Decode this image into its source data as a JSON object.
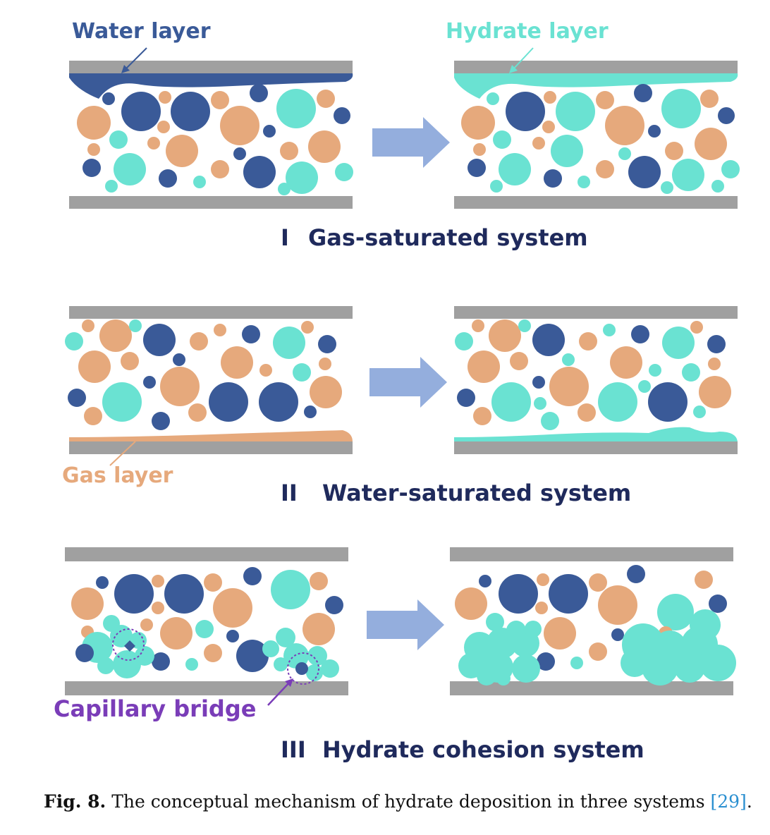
{
  "colors": {
    "water": "#3a5a98",
    "hydrate": "#6ae2d2",
    "gas": "#e6a97c",
    "wall": "#a0a0a0",
    "arrow": "#94aedd",
    "title": "#1f2a5c",
    "capillary": "#7a3db8"
  },
  "labels": {
    "water_layer": "Water layer",
    "hydrate_layer": "Hydrate layer",
    "gas_layer": "Gas layer",
    "capillary_bridge": "Capillary bridge"
  },
  "systems": [
    {
      "numeral": "I",
      "title": "Gas-saturated system"
    },
    {
      "numeral": "II",
      "title": "Water-saturated system"
    },
    {
      "numeral": "III",
      "title": "Hydrate cohesion system"
    }
  ],
  "caption": {
    "fig": "Fig. 8.",
    "text": "The conceptual mechanism of hydrate deposition in three systems",
    "ref": "[29]",
    "end": "."
  }
}
